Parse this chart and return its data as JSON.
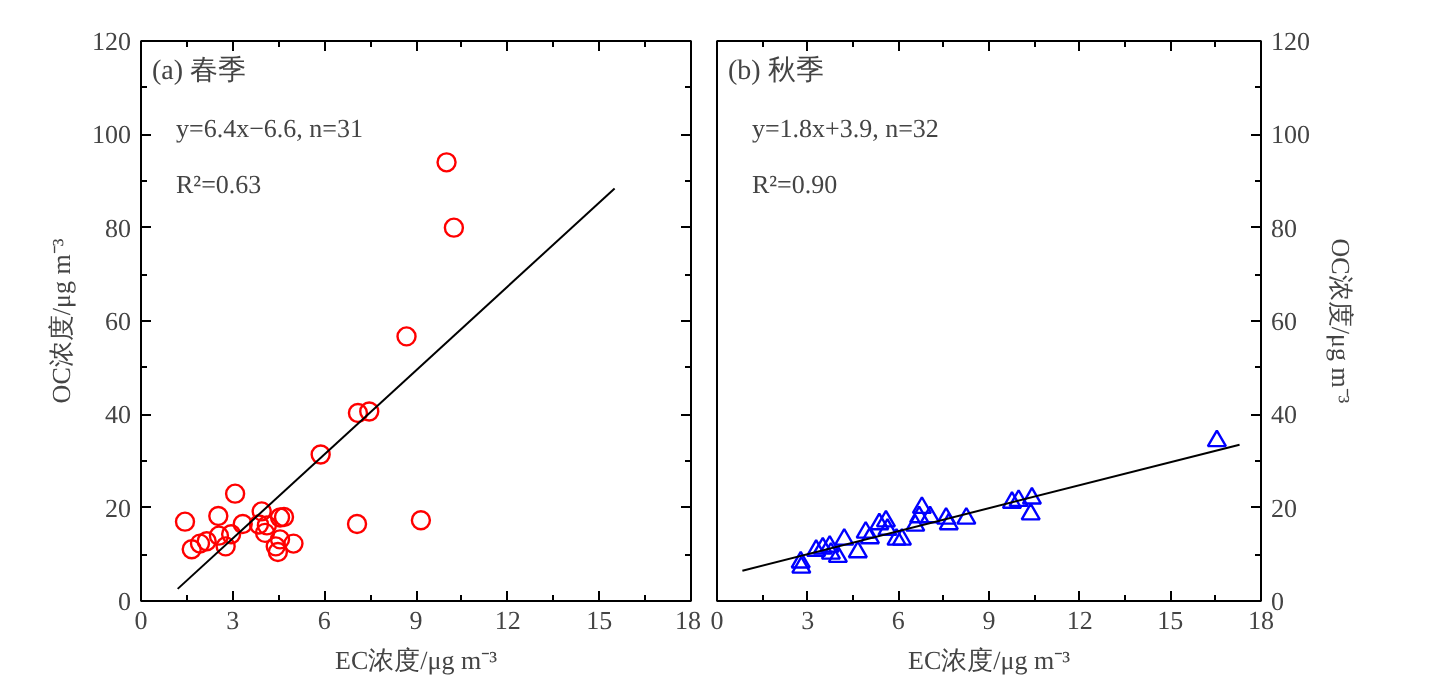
{
  "chart_data": [
    {
      "type": "scatter",
      "xlabel": "EC浓度/μg m⁻³",
      "ylabel": "OC浓度/μg m⁻³",
      "xlim": [
        0,
        18
      ],
      "xticks": [
        0,
        3,
        6,
        9,
        12,
        15,
        18
      ],
      "ylim": [
        0,
        120
      ],
      "yticks": [
        0,
        20,
        40,
        60,
        80,
        100,
        120
      ],
      "annotations": [
        "(a)  春季",
        "y=6.4x−6.6, n=31",
        "R²=0.63"
      ],
      "series": [
        {
          "type": "scatter",
          "marker": "circle",
          "color": "#ff0000",
          "x": [
            1.44,
            1.66,
            1.93,
            2.15,
            2.53,
            2.55,
            2.77,
            2.95,
            3.08,
            3.33,
            3.86,
            3.95,
            4.06,
            4.12,
            4.41,
            4.48,
            4.55,
            4.55,
            4.68,
            4.99,
            5.88,
            7.1,
            7.47,
            7.07,
            8.69,
            9.16,
            10.0,
            10.24
          ],
          "values": [
            17.0,
            11.1,
            12.3,
            12.8,
            18.2,
            14.0,
            11.7,
            14.3,
            23.0,
            16.5,
            16.4,
            19.2,
            14.6,
            16.2,
            11.7,
            10.5,
            13.2,
            17.9,
            18.0,
            12.3,
            31.4,
            40.3,
            40.6,
            16.5,
            56.7,
            17.3,
            94.0,
            80.0
          ]
        },
        {
          "type": "line",
          "color": "#000000",
          "x": [
            1.2,
            15.5
          ],
          "values": [
            2.6,
            88.4
          ]
        }
      ]
    },
    {
      "type": "scatter",
      "xlabel": "EC浓度/μg m⁻³",
      "y2label": "OC浓度/μg m⁻³",
      "xlim": [
        0,
        18
      ],
      "xticks": [
        0,
        3,
        6,
        9,
        12,
        15,
        18
      ],
      "y2lim": [
        0,
        120
      ],
      "y2ticks": [
        0,
        20,
        40,
        60,
        80,
        100,
        120
      ],
      "annotations": [
        "(b)  秋季",
        "y=1.8x+3.9, n=32",
        "R²=0.90"
      ],
      "series": [
        {
          "type": "scatter",
          "marker": "triangle",
          "axis": "y2",
          "color": "#0000ff",
          "x": [
            2.77,
            2.79,
            3.28,
            3.5,
            3.73,
            3.77,
            4.0,
            4.21,
            4.66,
            4.92,
            5.06,
            5.37,
            5.59,
            5.64,
            5.94,
            6.12,
            6.56,
            6.69,
            6.78,
            7.05,
            7.58,
            7.67,
            8.25,
            9.76,
            9.98,
            10.42,
            10.38,
            16.54
          ],
          "values": [
            8.3,
            7.2,
            10.8,
            11.3,
            11.7,
            10.2,
            9.5,
            13.2,
            10.5,
            14.7,
            13.5,
            16.5,
            17.1,
            15.3,
            13.2,
            13.2,
            16.2,
            18.0,
            20.0,
            18.0,
            17.7,
            16.5,
            17.7,
            21.1,
            21.5,
            22.0,
            18.6,
            34.3
          ]
        },
        {
          "type": "line",
          "axis": "y2",
          "color": "#000000",
          "x": [
            0.84,
            17.29
          ],
          "values": [
            6.5,
            33.5
          ]
        }
      ]
    }
  ]
}
